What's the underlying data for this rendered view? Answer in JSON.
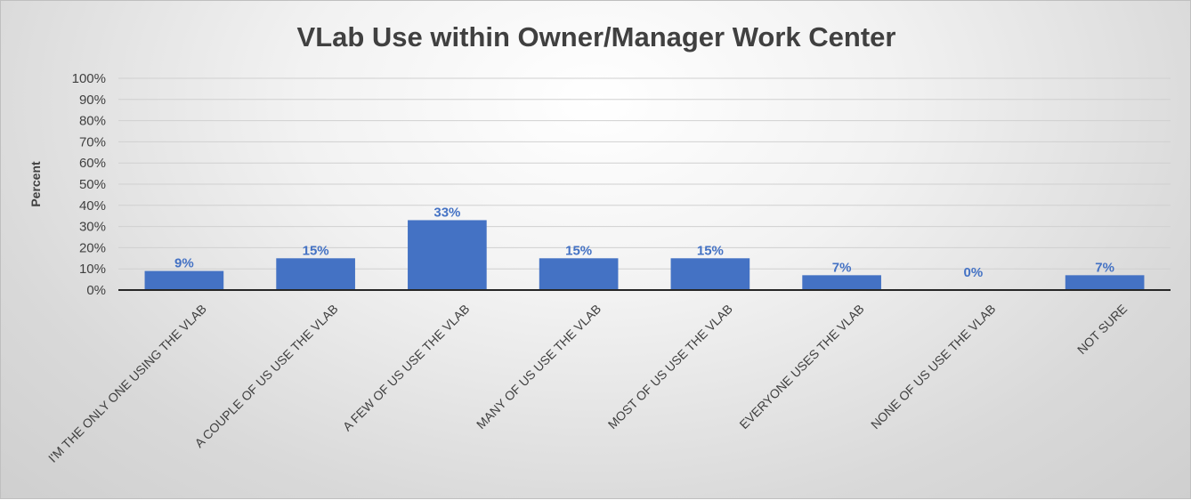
{
  "chart_data": {
    "type": "bar",
    "title": "VLab Use within Owner/Manager Work Center",
    "xlabel": "",
    "ylabel": "Percent",
    "ylim": [
      0,
      100
    ],
    "yticks": [
      "0%",
      "10%",
      "20%",
      "30%",
      "40%",
      "50%",
      "60%",
      "70%",
      "80%",
      "90%",
      "100%"
    ],
    "categories": [
      "I'M THE ONLY ONE USING THE VLAB",
      "A COUPLE OF US USE THE VLAB",
      "A FEW OF US USE THE VLAB",
      "MANY OF US USE THE VLAB",
      "MOST OF US USE THE VLAB",
      "EVERYONE USES THE VLAB",
      "NONE OF US USE THE VLAB",
      "NOT SURE"
    ],
    "values": [
      9,
      15,
      33,
      15,
      15,
      7,
      0,
      7
    ],
    "data_labels": [
      "9%",
      "15%",
      "33%",
      "15%",
      "15%",
      "7%",
      "0%",
      "7%"
    ],
    "grid": true,
    "legend": "none",
    "colors": {
      "bar": "#4472c4",
      "data_label": "#4472c4",
      "gridline": "#d0d0d0",
      "axis": "#262626"
    }
  }
}
